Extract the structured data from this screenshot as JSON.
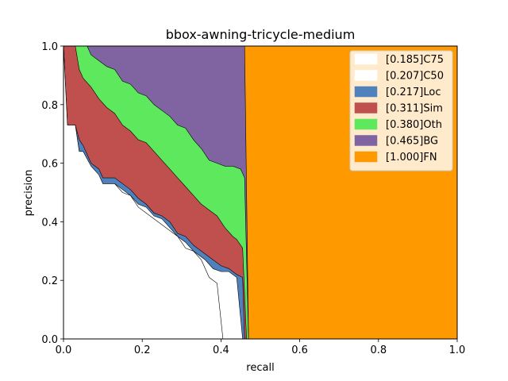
{
  "chart_data": {
    "type": "area",
    "title": "bbox-awning-tricycle-medium",
    "xlabel": "recall",
    "ylabel": "precision",
    "xlim": [
      0,
      1
    ],
    "ylim": [
      0,
      1
    ],
    "x_ticks": [
      "0.0",
      "0.2",
      "0.4",
      "0.6",
      "0.8",
      "1.0"
    ],
    "y_ticks": [
      "0.0",
      "0.2",
      "0.4",
      "0.6",
      "0.8",
      "1.0"
    ],
    "grid": false,
    "legend_position": "top-right",
    "series": [
      {
        "name": "[0.185]C75",
        "color": "#ffffff",
        "curve": [
          [
            0.0,
            1.0
          ],
          [
            0.01,
            0.73
          ],
          [
            0.03,
            0.73
          ],
          [
            0.04,
            0.64
          ],
          [
            0.05,
            0.64
          ],
          [
            0.07,
            0.59
          ],
          [
            0.09,
            0.56
          ],
          [
            0.1,
            0.53
          ],
          [
            0.13,
            0.53
          ],
          [
            0.15,
            0.5
          ],
          [
            0.17,
            0.49
          ],
          [
            0.19,
            0.45
          ],
          [
            0.21,
            0.43
          ],
          [
            0.23,
            0.41
          ],
          [
            0.25,
            0.39
          ],
          [
            0.27,
            0.37
          ],
          [
            0.29,
            0.35
          ],
          [
            0.31,
            0.31
          ],
          [
            0.33,
            0.3
          ],
          [
            0.35,
            0.27
          ],
          [
            0.37,
            0.21
          ],
          [
            0.39,
            0.19
          ],
          [
            0.405,
            0.0
          ]
        ]
      },
      {
        "name": "[0.207]C50",
        "color": "#ffffff",
        "curve": [
          [
            0.0,
            1.0
          ],
          [
            0.01,
            0.73
          ],
          [
            0.03,
            0.73
          ],
          [
            0.04,
            0.64
          ],
          [
            0.05,
            0.64
          ],
          [
            0.07,
            0.58
          ],
          [
            0.09,
            0.55
          ],
          [
            0.1,
            0.53
          ],
          [
            0.13,
            0.53
          ],
          [
            0.15,
            0.51
          ],
          [
            0.17,
            0.49
          ],
          [
            0.19,
            0.46
          ],
          [
            0.21,
            0.45
          ],
          [
            0.23,
            0.42
          ],
          [
            0.25,
            0.41
          ],
          [
            0.27,
            0.38
          ],
          [
            0.29,
            0.35
          ],
          [
            0.31,
            0.33
          ],
          [
            0.33,
            0.3
          ],
          [
            0.36,
            0.27
          ],
          [
            0.38,
            0.24
          ],
          [
            0.4,
            0.23
          ],
          [
            0.42,
            0.23
          ],
          [
            0.44,
            0.21
          ],
          [
            0.455,
            0.0
          ]
        ]
      },
      {
        "name": "[0.217]Loc",
        "color": "#4f81bd",
        "curve": [
          [
            0.0,
            1.0
          ],
          [
            0.01,
            0.73
          ],
          [
            0.03,
            0.73
          ],
          [
            0.04,
            0.68
          ],
          [
            0.05,
            0.66
          ],
          [
            0.07,
            0.6
          ],
          [
            0.09,
            0.58
          ],
          [
            0.1,
            0.55
          ],
          [
            0.13,
            0.55
          ],
          [
            0.15,
            0.53
          ],
          [
            0.17,
            0.51
          ],
          [
            0.19,
            0.48
          ],
          [
            0.21,
            0.46
          ],
          [
            0.23,
            0.43
          ],
          [
            0.25,
            0.42
          ],
          [
            0.27,
            0.4
          ],
          [
            0.29,
            0.36
          ],
          [
            0.31,
            0.35
          ],
          [
            0.33,
            0.32
          ],
          [
            0.36,
            0.29
          ],
          [
            0.38,
            0.27
          ],
          [
            0.4,
            0.25
          ],
          [
            0.42,
            0.24
          ],
          [
            0.44,
            0.22
          ],
          [
            0.455,
            0.21
          ],
          [
            0.46,
            0.0
          ]
        ]
      },
      {
        "name": "[0.311]Sim",
        "color": "#c0504d",
        "curve": [
          [
            0.0,
            1.0
          ],
          [
            0.03,
            1.0
          ],
          [
            0.04,
            0.92
          ],
          [
            0.05,
            0.89
          ],
          [
            0.07,
            0.86
          ],
          [
            0.09,
            0.82
          ],
          [
            0.11,
            0.79
          ],
          [
            0.13,
            0.77
          ],
          [
            0.15,
            0.73
          ],
          [
            0.17,
            0.71
          ],
          [
            0.19,
            0.68
          ],
          [
            0.21,
            0.67
          ],
          [
            0.23,
            0.64
          ],
          [
            0.25,
            0.61
          ],
          [
            0.27,
            0.58
          ],
          [
            0.29,
            0.55
          ],
          [
            0.31,
            0.52
          ],
          [
            0.33,
            0.49
          ],
          [
            0.35,
            0.46
          ],
          [
            0.37,
            0.44
          ],
          [
            0.39,
            0.42
          ],
          [
            0.41,
            0.38
          ],
          [
            0.43,
            0.35
          ],
          [
            0.44,
            0.34
          ],
          [
            0.455,
            0.31
          ],
          [
            0.465,
            0.0
          ]
        ]
      },
      {
        "name": "[0.380]Oth",
        "color": "#5ee85e",
        "curve": [
          [
            0.0,
            1.0
          ],
          [
            0.06,
            1.0
          ],
          [
            0.07,
            0.97
          ],
          [
            0.09,
            0.95
          ],
          [
            0.11,
            0.93
          ],
          [
            0.13,
            0.92
          ],
          [
            0.15,
            0.88
          ],
          [
            0.17,
            0.87
          ],
          [
            0.19,
            0.84
          ],
          [
            0.21,
            0.83
          ],
          [
            0.23,
            0.8
          ],
          [
            0.25,
            0.78
          ],
          [
            0.27,
            0.76
          ],
          [
            0.29,
            0.73
          ],
          [
            0.31,
            0.72
          ],
          [
            0.33,
            0.68
          ],
          [
            0.35,
            0.65
          ],
          [
            0.37,
            0.61
          ],
          [
            0.39,
            0.6
          ],
          [
            0.41,
            0.59
          ],
          [
            0.43,
            0.59
          ],
          [
            0.45,
            0.58
          ],
          [
            0.46,
            0.55
          ],
          [
            0.47,
            0.0
          ]
        ]
      },
      {
        "name": "[0.465]BG",
        "color": "#8064a2",
        "curve": [
          [
            0.0,
            1.0
          ],
          [
            0.46,
            1.0
          ],
          [
            0.47,
            0.0
          ]
        ]
      },
      {
        "name": "[1.000]FN",
        "color": "#ff9900",
        "curve": [
          [
            0.0,
            1.0
          ],
          [
            1.0,
            1.0
          ],
          [
            1.0,
            0.0
          ]
        ]
      }
    ]
  }
}
